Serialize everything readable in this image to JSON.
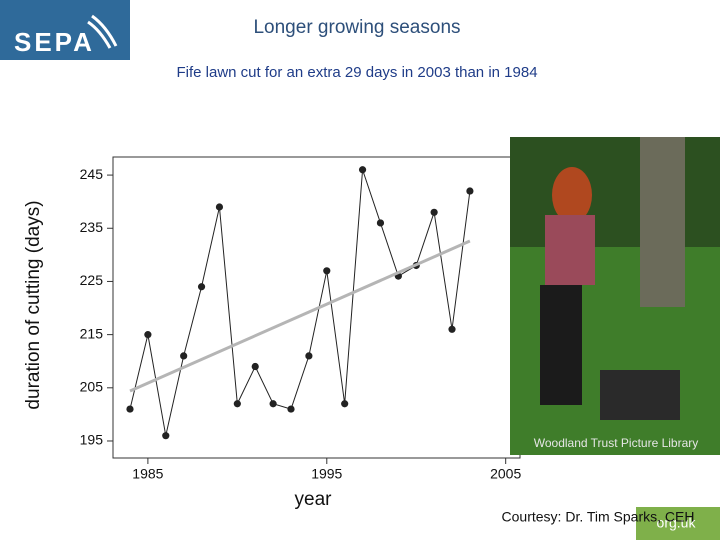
{
  "logo": "SEPA",
  "footer": {
    "photo_credit": "Woodland Trust Picture Library",
    "courtesy": "Courtesy: Dr. Tim Sparks, CEH",
    "web": "org.uk"
  },
  "chart_data": {
    "type": "line",
    "title": "Longer growing seasons",
    "subtitle": "Fife lawn cut for an extra 29 days in 2003 than in 1984",
    "x_label": "year",
    "y_label": "duration of cutting (days)",
    "series": [
      {
        "color": "#222222",
        "markers": true,
        "x": [
          1984,
          1985,
          1986,
          1987,
          1988,
          1989,
          1990,
          1991,
          1992,
          1993,
          1994,
          1995,
          1996,
          1997,
          1998,
          1999,
          2000,
          2001,
          2002,
          2003
        ],
        "values": [
          201,
          215,
          196,
          211,
          224,
          239,
          202,
          209,
          202,
          201,
          211,
          227,
          202,
          246,
          236,
          226,
          228,
          238,
          216,
          242
        ]
      },
      {
        "color": "#b5b5b5",
        "markers": false,
        "x": [
          1984,
          2003
        ],
        "values": [
          204.4,
          232.6
        ]
      }
    ],
    "xlim": [
      1983.05,
      2005.8
    ],
    "ylim": [
      191.8,
      248.4
    ],
    "xticks": [
      1985,
      1995,
      2005
    ],
    "yticks": [
      195,
      205,
      215,
      225,
      235,
      245
    ]
  }
}
